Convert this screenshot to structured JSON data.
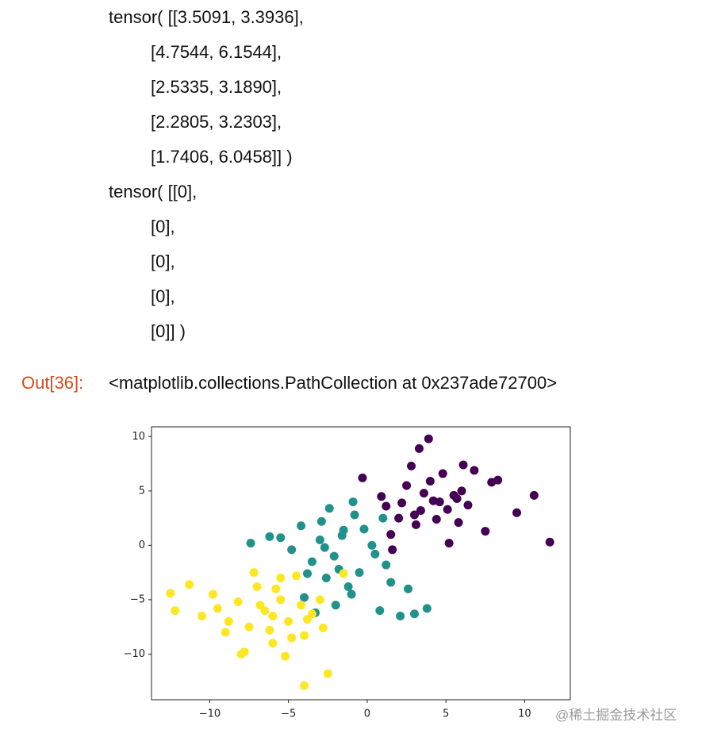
{
  "tensors": [
    {
      "first": "tensor( [[3.5091, 3.3936],",
      "rest": [
        "[4.7544, 6.1544],",
        "[2.5335, 3.1890],",
        "[2.2805, 3.2303],",
        "[1.7406, 6.0458]] )"
      ]
    },
    {
      "first": "tensor( [[0],",
      "rest": [
        "[0],",
        "[0],",
        "[0],",
        "[0]] )"
      ]
    }
  ],
  "prompt": "Out[36]:",
  "repr": "<matplotlib.collections.PathCollection at 0x237ade72700>",
  "watermark": "@稀土掘金技术社区",
  "chart_data": {
    "type": "scatter",
    "xlim": [
      -13.7,
      12.9
    ],
    "ylim": [
      -14.2,
      10.9
    ],
    "xticks": [
      {
        "value": -10,
        "label": "−10"
      },
      {
        "value": -5,
        "label": "−5"
      },
      0,
      5,
      10
    ],
    "yticks": [
      {
        "value": -10,
        "label": "−10"
      },
      {
        "value": -5,
        "label": "−5"
      },
      0,
      5,
      10
    ],
    "series": [
      {
        "color": "#440154",
        "x": [
          3.9,
          3.3,
          11.6,
          10.6,
          9.5,
          -0.3,
          1.6,
          2.5,
          4.2,
          5.1,
          6.0,
          3.0,
          4.8,
          5.5,
          2.2,
          3.6,
          4.4,
          6.8,
          7.5,
          1.2,
          2.8,
          5.8,
          4.0,
          3.1,
          6.4,
          7.9,
          0.9,
          5.2,
          2.0,
          4.6,
          6.1,
          3.4,
          8.3,
          1.5,
          5.7
        ],
        "y": [
          9.8,
          8.9,
          0.3,
          4.6,
          3.0,
          6.2,
          -0.4,
          5.5,
          4.1,
          3.3,
          5.0,
          2.8,
          6.6,
          4.6,
          3.9,
          4.8,
          2.4,
          6.9,
          1.3,
          3.6,
          7.3,
          2.1,
          5.9,
          1.9,
          3.7,
          5.8,
          4.5,
          0.2,
          2.5,
          4.0,
          7.4,
          3.2,
          6.0,
          1.0,
          4.3
        ]
      },
      {
        "color": "#21918c",
        "x": [
          -2.1,
          -1.5,
          -0.5,
          -3.0,
          -2.6,
          -4.2,
          -1.0,
          0.3,
          -3.5,
          -2.0,
          -0.8,
          1.2,
          -4.8,
          -1.8,
          -2.9,
          0.8,
          2.1,
          3.0,
          3.8,
          -5.5,
          -7.4,
          -6.2,
          -1.2,
          -3.8,
          -0.2,
          1.5,
          -2.4,
          -4.0,
          0.5,
          -1.6,
          2.6,
          -3.3,
          -0.9,
          1.0,
          -2.7
        ],
        "y": [
          -1.0,
          1.4,
          -2.5,
          0.5,
          -3.0,
          1.8,
          -4.5,
          0.0,
          -1.5,
          -5.5,
          2.8,
          -1.8,
          -0.4,
          -2.2,
          2.2,
          -6.0,
          -6.5,
          -6.3,
          -5.8,
          0.7,
          0.2,
          0.8,
          -3.8,
          -2.6,
          1.5,
          -3.4,
          3.4,
          -4.8,
          -0.8,
          0.9,
          -4.0,
          -6.2,
          4.0,
          2.5,
          -0.2
        ]
      },
      {
        "color": "#fde725",
        "x": [
          -12.5,
          -12.2,
          -11.3,
          -10.5,
          -9.8,
          -9.0,
          -8.2,
          -7.5,
          -7.0,
          -6.5,
          -6.0,
          -5.5,
          -5.0,
          -4.5,
          -4.0,
          -3.5,
          -3.0,
          -2.5,
          -8.8,
          -7.8,
          -6.8,
          -5.8,
          -4.8,
          -3.8,
          -7.2,
          -6.2,
          -5.2,
          -4.2,
          -8.0,
          -9.5,
          -5.5,
          -4.0,
          -2.8,
          -1.5,
          -6.0
        ],
        "y": [
          -4.4,
          -6.0,
          -3.6,
          -6.5,
          -4.5,
          -8.0,
          -5.2,
          -7.5,
          -3.8,
          -6.0,
          -9.0,
          -5.0,
          -7.0,
          -2.8,
          -12.9,
          -6.3,
          -5.0,
          -11.8,
          -7.0,
          -9.8,
          -5.5,
          -4.0,
          -8.5,
          -6.8,
          -2.5,
          -7.8,
          -10.2,
          -5.5,
          -10.0,
          -5.8,
          -3.0,
          -8.3,
          -7.6,
          -2.6,
          -6.5
        ]
      }
    ]
  }
}
